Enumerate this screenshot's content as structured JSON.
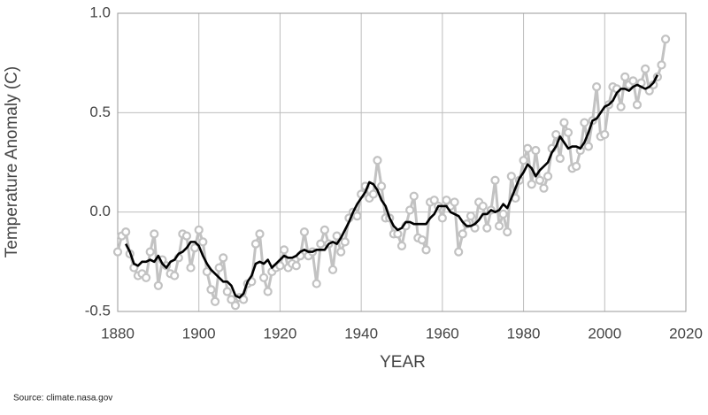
{
  "chart_data": {
    "type": "line",
    "axis_labels": {
      "x": "YEAR",
      "y": "Temperature Anomaly (C)"
    },
    "source": "Source: climate.nasa.gov",
    "x": [
      1880,
      1881,
      1882,
      1883,
      1884,
      1885,
      1886,
      1887,
      1888,
      1889,
      1890,
      1891,
      1892,
      1893,
      1894,
      1895,
      1896,
      1897,
      1898,
      1899,
      1900,
      1901,
      1902,
      1903,
      1904,
      1905,
      1906,
      1907,
      1908,
      1909,
      1910,
      1911,
      1912,
      1913,
      1914,
      1915,
      1916,
      1917,
      1918,
      1919,
      1920,
      1921,
      1922,
      1923,
      1924,
      1925,
      1926,
      1927,
      1928,
      1929,
      1930,
      1931,
      1932,
      1933,
      1934,
      1935,
      1936,
      1937,
      1938,
      1939,
      1940,
      1941,
      1942,
      1943,
      1944,
      1945,
      1946,
      1947,
      1948,
      1949,
      1950,
      1951,
      1952,
      1953,
      1954,
      1955,
      1956,
      1957,
      1958,
      1959,
      1960,
      1961,
      1962,
      1963,
      1964,
      1965,
      1966,
      1967,
      1968,
      1969,
      1970,
      1971,
      1972,
      1973,
      1974,
      1975,
      1976,
      1977,
      1978,
      1979,
      1980,
      1981,
      1982,
      1983,
      1984,
      1985,
      1986,
      1987,
      1988,
      1989,
      1990,
      1991,
      1992,
      1993,
      1994,
      1995,
      1996,
      1997,
      1998,
      1999,
      2000,
      2001,
      2002,
      2003,
      2004,
      2005,
      2006,
      2007,
      2008,
      2009,
      2010,
      2011,
      2012,
      2013,
      2014,
      2015
    ],
    "series": [
      {
        "color": "#c2c2c2",
        "markers": true,
        "values": [
          -0.2,
          -0.12,
          -0.1,
          -0.21,
          -0.28,
          -0.32,
          -0.31,
          -0.33,
          -0.2,
          -0.11,
          -0.37,
          -0.24,
          -0.27,
          -0.31,
          -0.32,
          -0.23,
          -0.11,
          -0.12,
          -0.28,
          -0.18,
          -0.09,
          -0.15,
          -0.3,
          -0.39,
          -0.45,
          -0.28,
          -0.23,
          -0.4,
          -0.44,
          -0.47,
          -0.43,
          -0.44,
          -0.36,
          -0.35,
          -0.16,
          -0.11,
          -0.33,
          -0.4,
          -0.3,
          -0.28,
          -0.27,
          -0.19,
          -0.28,
          -0.26,
          -0.27,
          -0.22,
          -0.1,
          -0.22,
          -0.2,
          -0.36,
          -0.16,
          -0.09,
          -0.16,
          -0.29,
          -0.12,
          -0.2,
          -0.15,
          -0.03,
          0,
          -0.02,
          0.09,
          0.13,
          0.07,
          0.09,
          0.26,
          0.13,
          -0.03,
          -0.03,
          -0.11,
          -0.11,
          -0.17,
          -0.07,
          0.01,
          0.08,
          -0.13,
          -0.14,
          -0.19,
          0.05,
          0.06,
          0.03,
          -0.03,
          0.06,
          0.03,
          0.05,
          -0.2,
          -0.11,
          -0.06,
          -0.02,
          -0.08,
          0.05,
          0.03,
          -0.08,
          0.01,
          0.16,
          -0.07,
          -0.01,
          -0.1,
          0.18,
          0.07,
          0.16,
          0.26,
          0.32,
          0.14,
          0.31,
          0.16,
          0.12,
          0.18,
          0.32,
          0.39,
          0.27,
          0.45,
          0.4,
          0.22,
          0.23,
          0.31,
          0.45,
          0.33,
          0.46,
          0.63,
          0.38,
          0.39,
          0.54,
          0.63,
          0.62,
          0.53,
          0.68,
          0.64,
          0.66,
          0.54,
          0.65,
          0.72,
          0.61,
          0.64,
          0.68,
          0.74,
          0.87
        ]
      },
      {
        "color": "#000000",
        "markers": false,
        "values": [
          null,
          null,
          -0.16,
          -0.2,
          -0.26,
          -0.27,
          -0.25,
          -0.25,
          -0.24,
          -0.25,
          -0.22,
          -0.26,
          -0.28,
          -0.25,
          -0.24,
          -0.21,
          -0.2,
          -0.18,
          -0.15,
          -0.15,
          -0.17,
          -0.22,
          -0.26,
          -0.29,
          -0.31,
          -0.33,
          -0.35,
          -0.35,
          -0.37,
          -0.42,
          -0.43,
          -0.41,
          -0.35,
          -0.32,
          -0.26,
          -0.25,
          -0.26,
          -0.24,
          -0.28,
          -0.26,
          -0.24,
          -0.22,
          -0.23,
          -0.23,
          -0.22,
          -0.2,
          -0.19,
          -0.2,
          -0.2,
          -0.19,
          -0.19,
          -0.19,
          -0.16,
          -0.15,
          -0.16,
          -0.13,
          -0.09,
          -0.05,
          0,
          0.04,
          0.07,
          0.1,
          0.15,
          0.14,
          0.11,
          0.06,
          0.03,
          -0.03,
          -0.07,
          -0.09,
          -0.08,
          -0.05,
          -0.05,
          -0.06,
          -0.06,
          -0.06,
          -0.06,
          -0.03,
          -0.01,
          0.03,
          0.03,
          0.03,
          0,
          -0.01,
          -0.02,
          -0.05,
          -0.07,
          -0.07,
          -0.06,
          -0.04,
          -0.01,
          -0.01,
          0.01,
          0,
          0.01,
          0.04,
          0.02,
          0.07,
          0.12,
          0.17,
          0.2,
          0.24,
          0.22,
          0.18,
          0.21,
          0.23,
          0.25,
          0.3,
          0.33,
          0.38,
          0.35,
          0.32,
          0.33,
          0.33,
          0.32,
          0.35,
          0.4,
          0.46,
          0.47,
          0.5,
          0.53,
          0.54,
          0.56,
          0.6,
          0.62,
          0.62,
          0.61,
          0.63,
          0.64,
          0.63,
          0.62,
          0.63,
          0.65,
          0.69,
          null,
          null
        ]
      }
    ],
    "xlim": [
      1880,
      2020
    ],
    "xticks": [
      1880,
      1900,
      1920,
      1940,
      1960,
      1980,
      2000,
      2020
    ],
    "ylim": [
      -0.5,
      1.0
    ],
    "yticks": [
      -0.5,
      {
        "value": 0,
        "label": "0.0"
      },
      0.5,
      {
        "value": 1.0,
        "label": "1.0"
      }
    ],
    "grid": true
  }
}
